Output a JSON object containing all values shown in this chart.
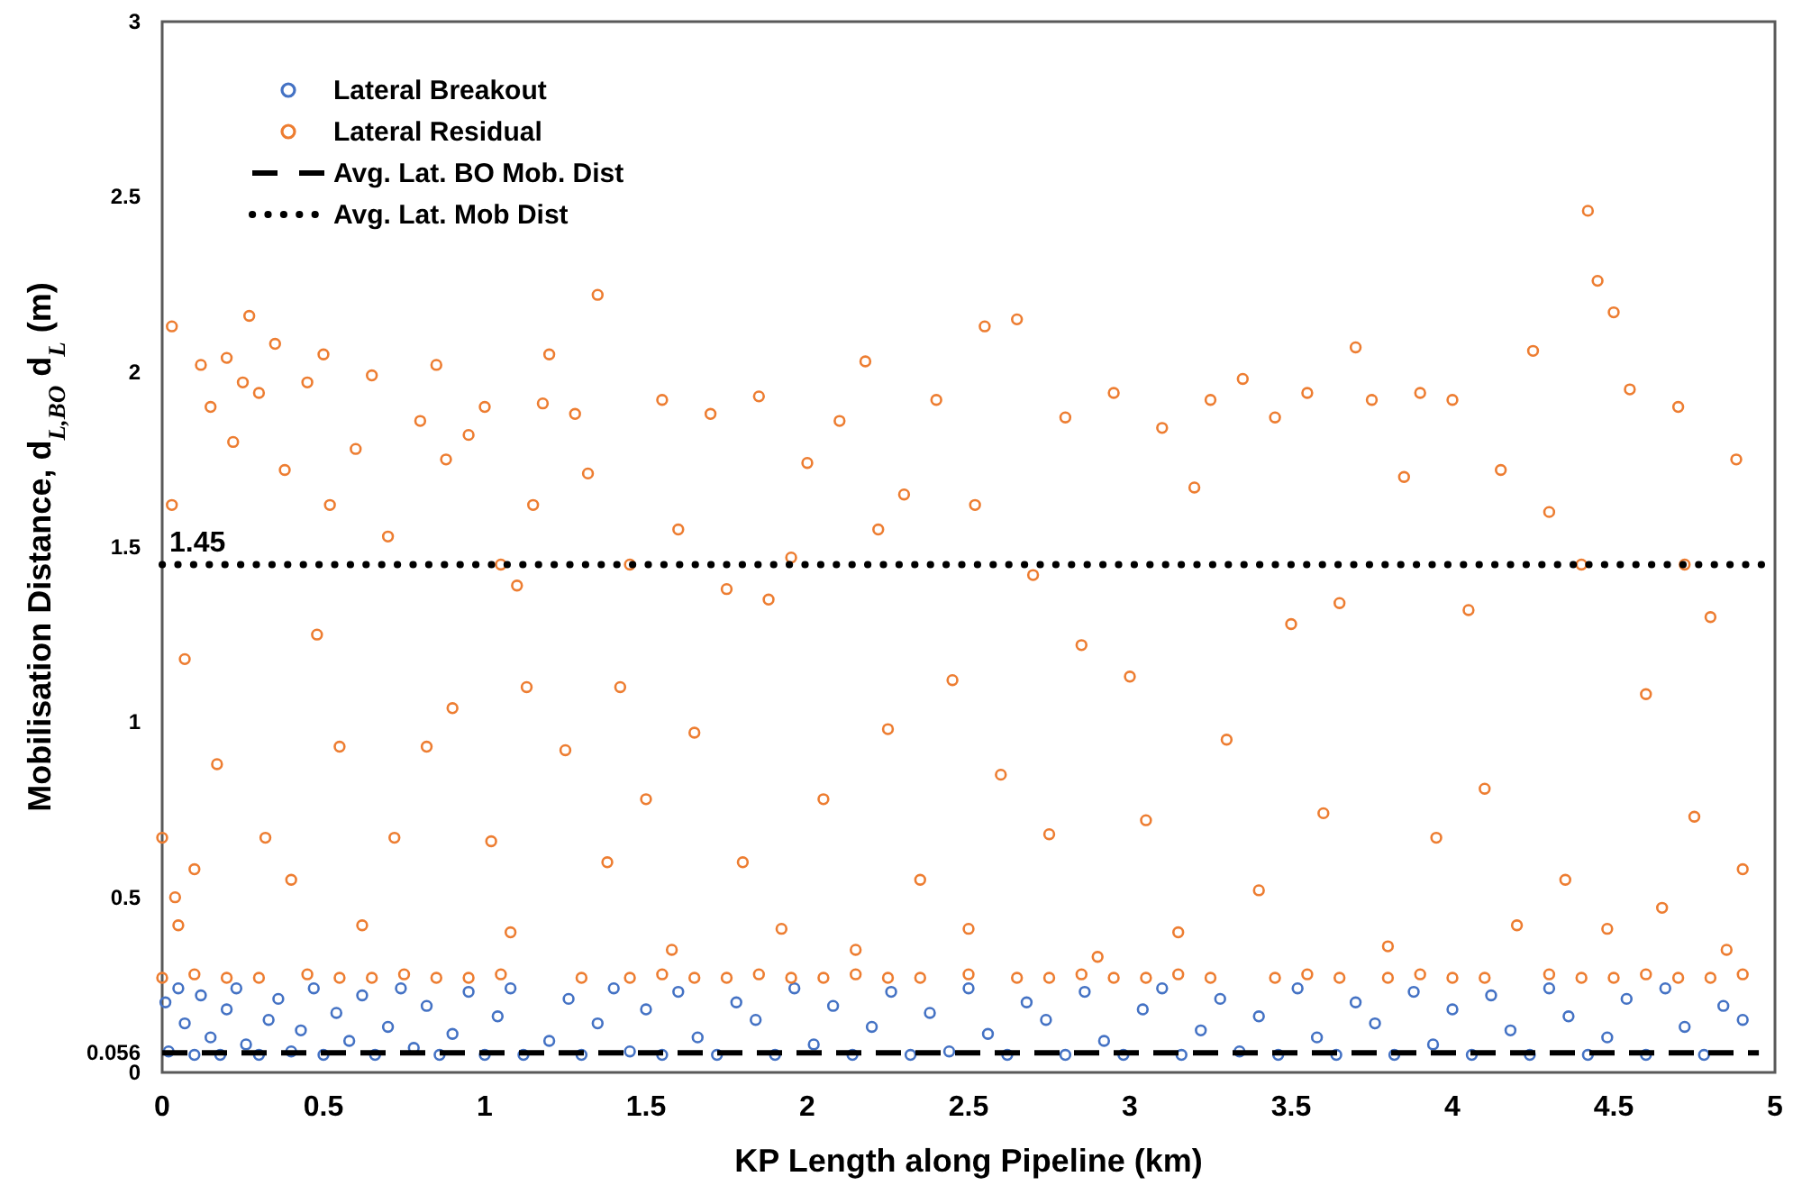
{
  "chart_data": {
    "type": "scatter",
    "xlabel": "KP Length along Pipeline (km)",
    "ylabel": "Mobilisation Distance, d$_{L,BO}$ d$_{L}$ (m)",
    "xlim": [
      0,
      5
    ],
    "xticks": [
      0,
      0.5,
      1,
      1.5,
      2,
      2.5,
      3,
      3.5,
      4,
      4.5,
      5
    ],
    "ylim": [
      0,
      3
    ],
    "yticks": [
      0,
      0.056,
      0.5,
      1,
      1.5,
      2,
      2.5,
      3
    ],
    "legend": "top left",
    "marker": "circle",
    "grid": false,
    "annotations": [
      {
        "text": "1.45",
        "x": 0,
        "y": 1.45
      }
    ],
    "series": [
      {
        "name": "Lateral Breakout",
        "color": "#4472c4",
        "type": "scatter",
        "x": [
          0.01,
          0.02,
          0.05,
          0.07,
          0.1,
          0.12,
          0.15,
          0.18,
          0.2,
          0.23,
          0.26,
          0.3,
          0.33,
          0.36,
          0.4,
          0.43,
          0.47,
          0.5,
          0.54,
          0.58,
          0.62,
          0.66,
          0.7,
          0.74,
          0.78,
          0.82,
          0.86,
          0.9,
          0.95,
          1.0,
          1.04,
          1.08,
          1.12,
          1.2,
          1.26,
          1.3,
          1.35,
          1.4,
          1.45,
          1.5,
          1.55,
          1.6,
          1.66,
          1.72,
          1.78,
          1.84,
          1.9,
          1.96,
          2.02,
          2.08,
          2.14,
          2.2,
          2.26,
          2.32,
          2.38,
          2.44,
          2.5,
          2.56,
          2.62,
          2.68,
          2.74,
          2.8,
          2.86,
          2.92,
          2.98,
          3.04,
          3.1,
          3.16,
          3.22,
          3.28,
          3.34,
          3.4,
          3.46,
          3.52,
          3.58,
          3.64,
          3.7,
          3.76,
          3.82,
          3.88,
          3.94,
          4.0,
          4.06,
          4.12,
          4.18,
          4.24,
          4.3,
          4.36,
          4.42,
          4.48,
          4.54,
          4.6,
          4.66,
          4.72,
          4.78,
          4.84,
          4.9
        ],
        "values": [
          0.2,
          0.06,
          0.24,
          0.14,
          0.05,
          0.22,
          0.1,
          0.05,
          0.18,
          0.24,
          0.08,
          0.05,
          0.15,
          0.21,
          0.06,
          0.12,
          0.24,
          0.05,
          0.17,
          0.09,
          0.22,
          0.05,
          0.13,
          0.24,
          0.07,
          0.19,
          0.05,
          0.11,
          0.23,
          0.05,
          0.16,
          0.24,
          0.05,
          0.09,
          0.21,
          0.05,
          0.14,
          0.24,
          0.06,
          0.18,
          0.05,
          0.23,
          0.1,
          0.05,
          0.2,
          0.15,
          0.05,
          0.24,
          0.08,
          0.19,
          0.05,
          0.13,
          0.23,
          0.05,
          0.17,
          0.06,
          0.24,
          0.11,
          0.05,
          0.2,
          0.15,
          0.05,
          0.23,
          0.09,
          0.05,
          0.18,
          0.24,
          0.05,
          0.12,
          0.21,
          0.06,
          0.16,
          0.05,
          0.24,
          0.1,
          0.05,
          0.2,
          0.14,
          0.05,
          0.23,
          0.08,
          0.18,
          0.05,
          0.22,
          0.12,
          0.05,
          0.24,
          0.16,
          0.05,
          0.1,
          0.21,
          0.05,
          0.24,
          0.13,
          0.05,
          0.19,
          0.15
        ]
      },
      {
        "name": "Lateral Residual",
        "color": "#ed7d31",
        "type": "scatter",
        "x": [
          0,
          0.03,
          0.03,
          0.04,
          0.05,
          0.07,
          0.1,
          0.12,
          0.15,
          0.17,
          0.2,
          0.22,
          0.25,
          0.27,
          0.3,
          0.32,
          0.35,
          0.38,
          0.4,
          0.45,
          0.48,
          0.5,
          0.52,
          0.55,
          0.6,
          0.62,
          0.65,
          0.7,
          0.72,
          0.8,
          0.82,
          0.85,
          0.88,
          0.9,
          0.95,
          1.0,
          1.02,
          1.05,
          1.08,
          1.1,
          1.13,
          1.15,
          1.18,
          1.2,
          1.25,
          1.28,
          1.32,
          1.35,
          1.38,
          1.42,
          1.45,
          1.5,
          1.55,
          1.58,
          1.6,
          1.65,
          1.7,
          1.75,
          1.8,
          1.85,
          1.88,
          1.92,
          1.95,
          2.0,
          2.05,
          2.1,
          2.15,
          2.18,
          2.22,
          2.25,
          2.3,
          2.35,
          2.4,
          2.45,
          2.5,
          2.52,
          2.55,
          2.6,
          2.65,
          2.7,
          2.75,
          2.8,
          2.85,
          2.9,
          2.95,
          3.0,
          3.05,
          3.1,
          3.15,
          3.2,
          3.25,
          3.3,
          3.35,
          3.4,
          3.45,
          3.5,
          3.55,
          3.6,
          3.65,
          3.7,
          3.75,
          3.8,
          3.85,
          3.9,
          3.95,
          4.0,
          4.05,
          4.1,
          4.15,
          4.2,
          4.25,
          4.3,
          4.35,
          4.4,
          4.42,
          4.45,
          4.48,
          4.5,
          4.55,
          4.6,
          4.65,
          4.7,
          4.72,
          4.75,
          4.8,
          4.85,
          4.88,
          4.9,
          0.0,
          0.1,
          0.2,
          0.3,
          0.45,
          0.55,
          0.65,
          0.75,
          0.85,
          0.95,
          1.05,
          1.3,
          1.45,
          1.55,
          1.65,
          1.75,
          1.85,
          1.95,
          2.05,
          2.15,
          2.25,
          2.35,
          2.5,
          2.65,
          2.75,
          2.85,
          2.95,
          3.05,
          3.15,
          3.25,
          3.45,
          3.55,
          3.65,
          3.8,
          3.9,
          4.0,
          4.1,
          4.3,
          4.4,
          4.5,
          4.6,
          4.7,
          4.8,
          4.9
        ],
        "values": [
          0.67,
          2.13,
          1.62,
          0.5,
          0.42,
          1.18,
          0.58,
          2.02,
          1.9,
          0.88,
          2.04,
          1.8,
          1.97,
          2.16,
          1.94,
          0.67,
          2.08,
          1.72,
          0.55,
          1.97,
          1.25,
          2.05,
          1.62,
          0.93,
          1.78,
          0.42,
          1.99,
          1.53,
          0.67,
          1.86,
          0.93,
          2.02,
          1.75,
          1.04,
          1.82,
          1.9,
          0.66,
          1.45,
          0.4,
          1.39,
          1.1,
          1.62,
          1.91,
          2.05,
          0.92,
          1.88,
          1.71,
          2.22,
          0.6,
          1.1,
          1.45,
          0.78,
          1.92,
          0.35,
          1.55,
          0.97,
          1.88,
          1.38,
          0.6,
          1.93,
          1.35,
          0.41,
          1.47,
          1.74,
          0.78,
          1.86,
          0.35,
          2.03,
          1.55,
          0.98,
          1.65,
          0.55,
          1.92,
          1.12,
          0.41,
          1.62,
          2.13,
          0.85,
          2.15,
          1.42,
          0.68,
          1.87,
          1.22,
          0.33,
          1.94,
          1.13,
          0.72,
          1.84,
          0.4,
          1.67,
          1.92,
          0.95,
          1.98,
          0.52,
          1.87,
          1.28,
          1.94,
          0.74,
          1.34,
          2.07,
          1.92,
          0.36,
          1.7,
          1.94,
          0.67,
          1.92,
          1.32,
          0.81,
          1.72,
          0.42,
          2.06,
          1.6,
          0.55,
          1.45,
          2.46,
          2.26,
          0.41,
          2.17,
          1.95,
          1.08,
          0.47,
          1.9,
          1.45,
          0.73,
          1.3,
          0.35,
          1.75,
          0.58,
          0.27,
          0.28,
          0.27,
          0.27,
          0.28,
          0.27,
          0.27,
          0.28,
          0.27,
          0.27,
          0.28,
          0.27,
          0.27,
          0.28,
          0.27,
          0.27,
          0.28,
          0.27,
          0.27,
          0.28,
          0.27,
          0.27,
          0.28,
          0.27,
          0.27,
          0.28,
          0.27,
          0.27,
          0.28,
          0.27,
          0.27,
          0.28,
          0.27,
          0.27,
          0.28,
          0.27,
          0.27,
          0.28,
          0.27,
          0.27,
          0.28,
          0.27,
          0.27,
          0.28
        ]
      },
      {
        "name": "Avg. Lat. BO Mob. Dist",
        "color": "#000000",
        "type": "line",
        "line_style": "dashed",
        "marker": "none",
        "x": [
          0,
          4.95
        ],
        "values": [
          0.056,
          0.056
        ]
      },
      {
        "name": "Avg. Lat. Mob Dist",
        "color": "#000000",
        "type": "line",
        "line_style": "dotted",
        "marker": "none",
        "x": [
          0,
          5
        ],
        "values": [
          1.45,
          1.45
        ]
      }
    ]
  }
}
